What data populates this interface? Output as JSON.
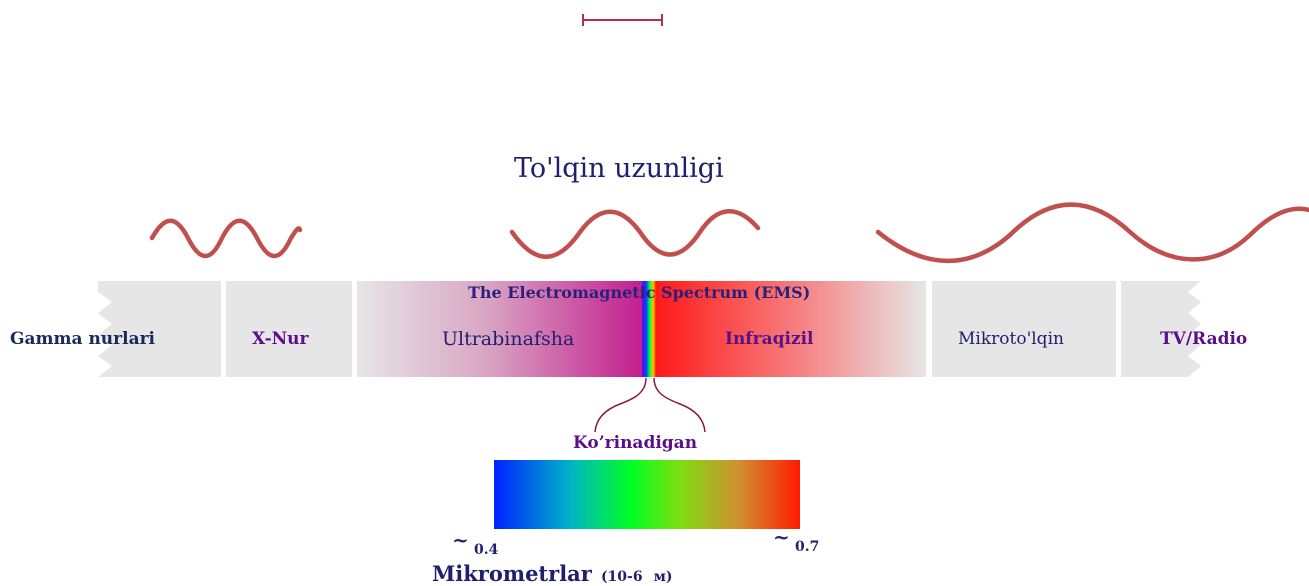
{
  "title": "To'lqin uzunligi",
  "spectrum_title": "The Electromagnetic Spectrum (EMS)",
  "bands": {
    "gamma": "Gamma nurlari",
    "xray": "X-Nur",
    "uv": "Ultrabinafsha",
    "ir": "Infraqizil",
    "microwave": "Mikroto'lqin",
    "radio": "TV/Radio"
  },
  "visible_label": "Ko’rinadigan",
  "scale": {
    "min_mark": "~",
    "min_value": "0.4",
    "max_mark": "~",
    "max_value": "0.7",
    "unit_label": "Mikrometrlar",
    "unit_detail": "(10-6",
    "unit_symbol": "м)"
  },
  "colors": {
    "wave": "#c0504d",
    "band_bg": "#e6e6e6",
    "text": "#1f1f6e",
    "accent_purple": "#5b0f8a",
    "scale_bar": "#b03050"
  }
}
